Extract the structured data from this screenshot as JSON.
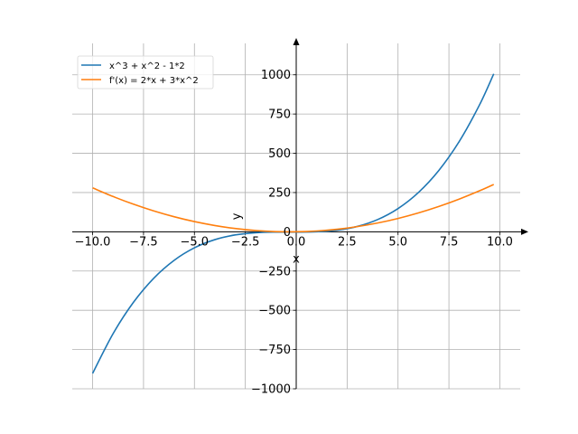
{
  "chart_data": {
    "type": "line",
    "xlabel": "x",
    "ylabel": "y",
    "xlim": [
      -11.0,
      11.0
    ],
    "ylim": [
      -1000,
      1200
    ],
    "x_ticks": [
      -10.0,
      -7.5,
      -5.0,
      -2.5,
      0.0,
      2.5,
      5.0,
      7.5,
      10.0
    ],
    "x_tick_labels": [
      "−10.0",
      "−7.5",
      "−5.0",
      "−2.5",
      "0.0",
      "2.5",
      "5.0",
      "7.5",
      "10.0"
    ],
    "y_ticks": [
      -1000,
      -750,
      -500,
      -250,
      0,
      250,
      500,
      750,
      1000
    ],
    "y_tick_labels": [
      "−1000",
      "−750",
      "−500",
      "−250",
      "0",
      "250",
      "500",
      "750",
      "1000"
    ],
    "grid": true,
    "legend_position": "top-left",
    "x_domain": [
      -10.0,
      9.7
    ],
    "series": [
      {
        "name": "x^3 + x^2 - 1*2",
        "color": "#1f77b4",
        "x": [
          -10,
          -9,
          -8,
          -7,
          -6,
          -5,
          -4,
          -3,
          -2,
          -1,
          0,
          1,
          2,
          3,
          4,
          5,
          6,
          7,
          8,
          9,
          9.7
        ],
        "y": [
          -902,
          -650,
          -450,
          -296,
          -182,
          -102,
          -50,
          -20,
          -6,
          -2,
          -2,
          0,
          10,
          34,
          78,
          148,
          250,
          390,
          574,
          808,
          1006
        ]
      },
      {
        "name": "f'(x) = 2*x + 3*x^2",
        "color": "#ff7f0e",
        "x": [
          -10,
          -9,
          -8,
          -7,
          -6,
          -5,
          -4,
          -3,
          -2,
          -1,
          0,
          1,
          2,
          3,
          4,
          5,
          6,
          7,
          8,
          9,
          9.7
        ],
        "y": [
          280,
          225,
          176,
          133,
          96,
          65,
          40,
          21,
          8,
          1,
          0,
          5,
          16,
          33,
          56,
          85,
          120,
          161,
          208,
          261,
          301.7
        ]
      }
    ]
  }
}
